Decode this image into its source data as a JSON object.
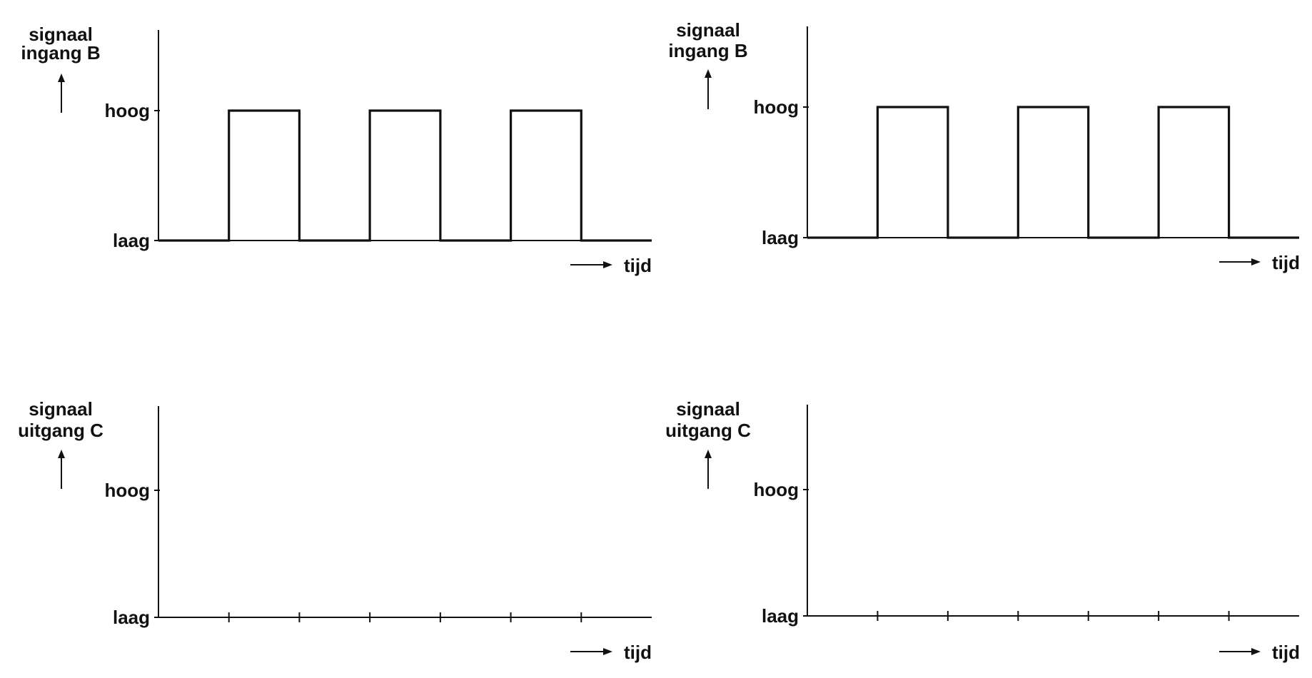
{
  "chart_data": [
    {
      "type": "line",
      "step": true,
      "ylabel": [
        "signaal",
        "ingang B"
      ],
      "xlabel": "tijd",
      "yticks": [
        "hoog",
        "laag"
      ],
      "x_divisions": 7,
      "series": [
        {
          "x": [
            0,
            1,
            1,
            2,
            2,
            3,
            3,
            4,
            4,
            5,
            5,
            6,
            6,
            7
          ],
          "y": [
            "laag",
            "laag",
            "hoog",
            "hoog",
            "laag",
            "laag",
            "hoog",
            "hoog",
            "laag",
            "laag",
            "hoog",
            "hoog",
            "laag",
            "laag"
          ]
        }
      ]
    },
    {
      "type": "line",
      "step": true,
      "ylabel": [
        "signaal",
        "ingang B"
      ],
      "xlabel": "tijd",
      "yticks": [
        "hoog",
        "laag"
      ],
      "x_divisions": 7,
      "series": [
        {
          "x": [
            0,
            1,
            1,
            2,
            2,
            3,
            3,
            4,
            4,
            5,
            5,
            6,
            6,
            7
          ],
          "y": [
            "laag",
            "laag",
            "hoog",
            "hoog",
            "laag",
            "laag",
            "hoog",
            "hoog",
            "laag",
            "laag",
            "hoog",
            "hoog",
            "laag",
            "laag"
          ]
        }
      ]
    },
    {
      "type": "line",
      "step": true,
      "ylabel": [
        "signaal",
        "uitgang C"
      ],
      "xlabel": "tijd",
      "yticks": [
        "hoog",
        "laag"
      ],
      "x_divisions": 7,
      "x_tick_marks": [
        1,
        2,
        3,
        4,
        5,
        6
      ],
      "series": []
    },
    {
      "type": "line",
      "step": true,
      "ylabel": [
        "signaal",
        "uitgang C"
      ],
      "xlabel": "tijd",
      "yticks": [
        "hoog",
        "laag"
      ],
      "x_divisions": 7,
      "x_tick_marks": [
        1,
        2,
        3,
        4,
        5,
        6
      ],
      "series": []
    }
  ]
}
